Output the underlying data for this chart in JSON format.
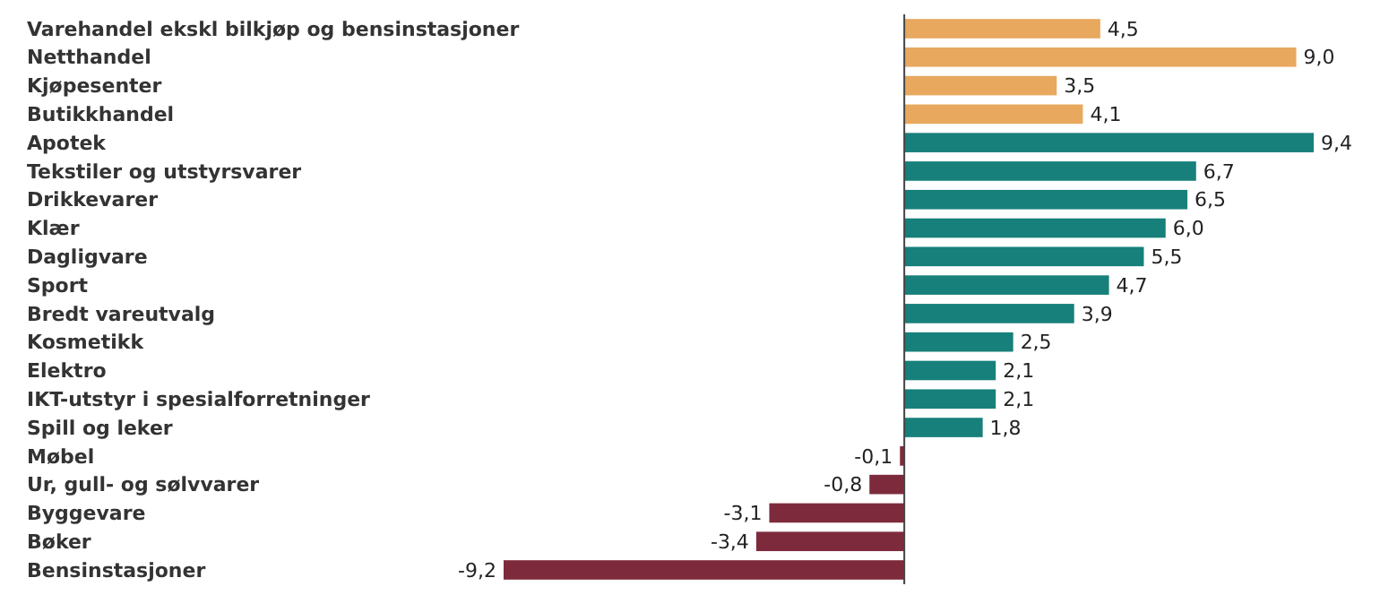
{
  "chart_data": {
    "type": "bar",
    "orientation": "horizontal",
    "categories": [
      "Varehandel ekskl bilkjøp og bensinstasjoner",
      "Netthandel",
      "Kjøpesenter",
      "Butikkhandel",
      "Apotek",
      "Tekstiler og utstyrsvarer",
      "Drikkevarer",
      "Klær",
      "Dagligvare",
      "Sport",
      "Bredt vareutvalg",
      "Kosmetikk",
      "Elektro",
      "IKT-utstyr i spesialforretninger",
      "Spill og leker",
      "Møbel",
      "Ur, gull- og sølvvarer",
      "Byggevare",
      "Bøker",
      "Bensinstasjoner"
    ],
    "values": [
      4.5,
      9.0,
      3.5,
      4.1,
      9.4,
      6.7,
      6.5,
      6.0,
      5.5,
      4.7,
      3.9,
      2.5,
      2.1,
      2.1,
      1.8,
      -0.1,
      -0.8,
      -3.1,
      -3.4,
      -9.2
    ],
    "value_labels": [
      "4,5",
      "9,0",
      "3,5",
      "4,1",
      "9,4",
      "6,7",
      "6,5",
      "6,0",
      "5,5",
      "4,7",
      "3,9",
      "2,5",
      "2,1",
      "2,1",
      "1,8",
      "-0,1",
      "-0,8",
      "-3,1",
      "-3,4",
      "-9,2"
    ],
    "colors": [
      "#e8a85e",
      "#e8a85e",
      "#e8a85e",
      "#e8a85e",
      "#17807a",
      "#17807a",
      "#17807a",
      "#17807a",
      "#17807a",
      "#17807a",
      "#17807a",
      "#17807a",
      "#17807a",
      "#17807a",
      "#17807a",
      "#7d2b3c",
      "#7d2b3c",
      "#7d2b3c",
      "#7d2b3c",
      "#7d2b3c"
    ]
  }
}
